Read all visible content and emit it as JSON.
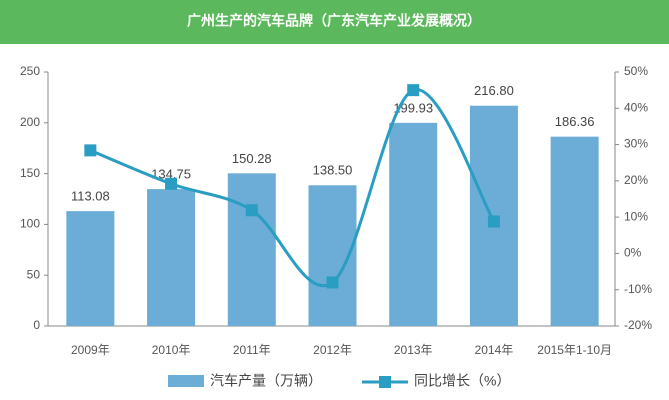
{
  "chart_data": {
    "type": "bar_line",
    "title": "广州生产的汽车品牌（广东汽车产业发展概况）",
    "categories": [
      "2009年",
      "2010年",
      "2011年",
      "2012年",
      "2013年",
      "2014年",
      "2015年1-10月"
    ],
    "series": [
      {
        "name": "汽车产量（万辆）",
        "color": "#6badd6",
        "values": [
          113.08,
          134.75,
          150.28,
          138.5,
          199.93,
          216.8,
          186.36
        ],
        "value_labels": [
          "113.08",
          "134.75",
          "150.28",
          "138.50",
          "199.93",
          "216.80",
          "186.36"
        ]
      },
      {
        "name": "同比增长（%）",
        "color": "#2a9dc2",
        "axis": "y2",
        "values": [
          28.4,
          19.2,
          11.9,
          -8,
          45,
          8.8,
          null
        ]
      }
    ],
    "ylim": [
      0,
      250
    ],
    "yticks": [
      0,
      50,
      100,
      150,
      200,
      250
    ],
    "y2lim": [
      -20,
      50
    ],
    "y2ticks": [
      {
        "value": -20,
        "label": "-20%"
      },
      {
        "value": -10,
        "label": "-10%"
      },
      {
        "value": 0,
        "label": "0%"
      },
      {
        "value": 10,
        "label": "10%"
      },
      {
        "value": 20,
        "label": "20%"
      },
      {
        "value": 30,
        "label": "30%"
      },
      {
        "value": 40,
        "label": "40%"
      },
      {
        "value": 50,
        "label": "50%"
      }
    ]
  }
}
